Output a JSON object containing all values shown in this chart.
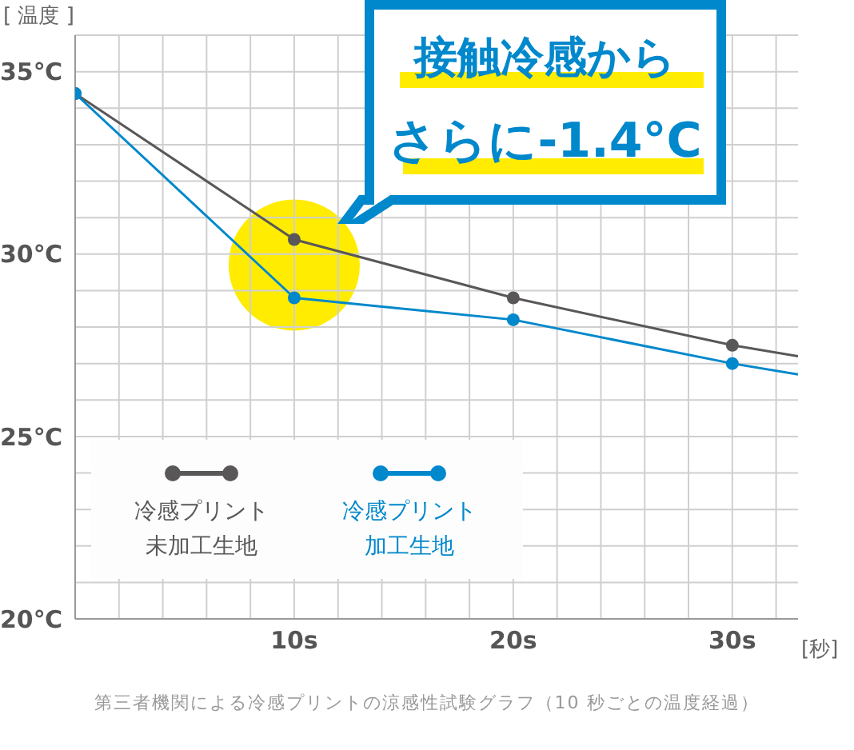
{
  "chart_data": {
    "type": "line",
    "ylabel": "[ 温度 ]",
    "xlabel": "[秒]",
    "x": [
      0,
      10,
      20,
      30,
      33
    ],
    "series": [
      {
        "name": "冷感プリント未加工生地",
        "color": "#595757",
        "values": [
          34.4,
          30.4,
          28.8,
          27.5,
          27.2
        ]
      },
      {
        "name": "冷感プリント加工生地",
        "color": "#0088cc",
        "values": [
          34.4,
          28.8,
          28.2,
          27.0,
          26.7
        ]
      }
    ],
    "xlim": [
      0,
      33
    ],
    "xticks": [
      {
        "value": 2,
        "label": null
      },
      {
        "value": 4,
        "label": null
      },
      {
        "value": 6,
        "label": null
      },
      {
        "value": 8,
        "label": null
      },
      {
        "value": 10,
        "label": "10s"
      },
      {
        "value": 12,
        "label": null
      },
      {
        "value": 14,
        "label": null
      },
      {
        "value": 16,
        "label": null
      },
      {
        "value": 18,
        "label": null
      },
      {
        "value": 20,
        "label": "20s"
      },
      {
        "value": 22,
        "label": null
      },
      {
        "value": 24,
        "label": null
      },
      {
        "value": 26,
        "label": null
      },
      {
        "value": 28,
        "label": null
      },
      {
        "value": 30,
        "label": "30s"
      },
      {
        "value": 32,
        "label": null
      }
    ],
    "ylim": [
      20,
      36
    ],
    "yticks": [
      {
        "value": 20,
        "label": "20℃"
      },
      {
        "value": 21,
        "label": null
      },
      {
        "value": 22,
        "label": null
      },
      {
        "value": 23,
        "label": null
      },
      {
        "value": 24,
        "label": null
      },
      {
        "value": 25,
        "label": "25℃"
      },
      {
        "value": 26,
        "label": null
      },
      {
        "value": 27,
        "label": null
      },
      {
        "value": 28,
        "label": null
      },
      {
        "value": 29,
        "label": null
      },
      {
        "value": 30,
        "label": "30℃"
      },
      {
        "value": 31,
        "label": null
      },
      {
        "value": 32,
        "label": null
      },
      {
        "value": 33,
        "label": null
      },
      {
        "value": 34,
        "label": null
      },
      {
        "value": 35,
        "label": "35℃"
      },
      {
        "value": 36,
        "label": null
      }
    ],
    "grid": true,
    "legend": "bottom left",
    "marker": "circle",
    "line_style": "solid",
    "annotations": [
      "接触冷感から",
      "さらに-1.4°C",
      "第三者機関による冷感プリントの涼感性試験グラフ（10 秒ごとの温度経過）"
    ]
  }
}
